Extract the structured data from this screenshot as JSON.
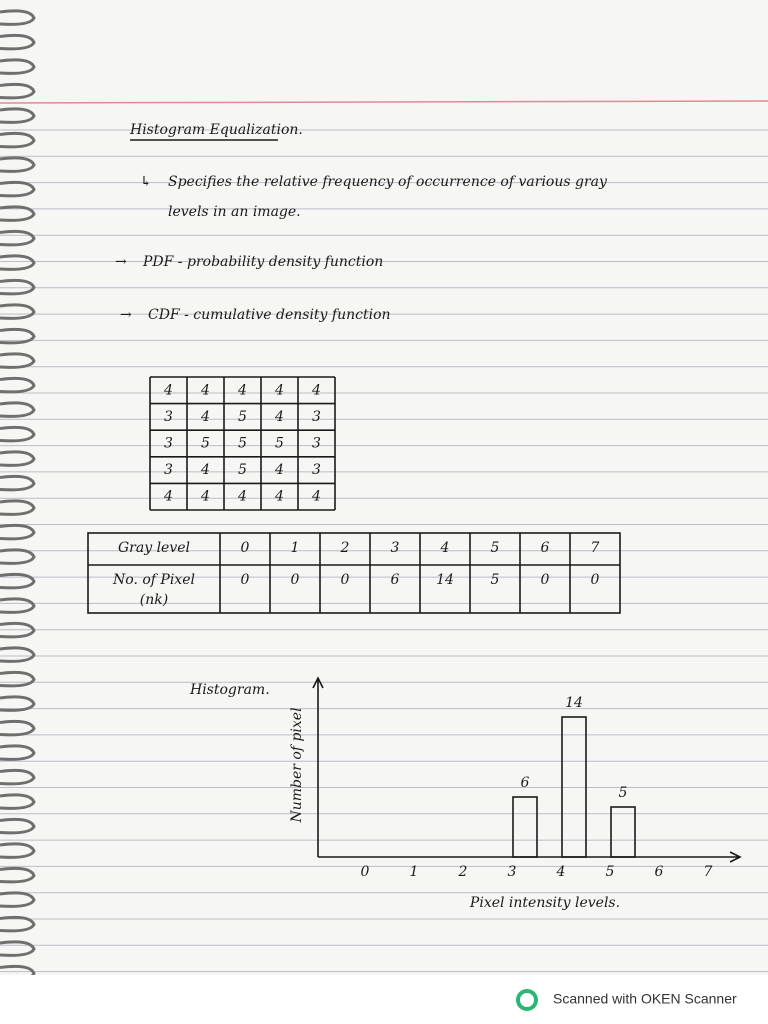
{
  "header": {
    "title": "Histogram Equalization."
  },
  "notes": [
    {
      "marker": "↳",
      "lines": [
        "Specifies the relative frequency of occurrence of various gray",
        "levels in an image."
      ]
    },
    {
      "marker": "→",
      "lines": [
        "PDF - probability density function"
      ]
    },
    {
      "marker": "→",
      "lines": [
        "CDF - cumulative density function"
      ]
    }
  ],
  "matrix": {
    "rows": [
      [
        4,
        4,
        4,
        4,
        4
      ],
      [
        3,
        4,
        5,
        4,
        3
      ],
      [
        3,
        5,
        5,
        5,
        3
      ],
      [
        3,
        4,
        5,
        4,
        3
      ],
      [
        4,
        4,
        4,
        4,
        4
      ]
    ]
  },
  "table": {
    "rows": [
      {
        "label": [
          "Gray level"
        ],
        "cells": [
          0,
          1,
          2,
          3,
          4,
          5,
          6,
          7
        ]
      },
      {
        "label": [
          "No. of Pixel",
          "(nk)"
        ],
        "cells": [
          0,
          0,
          0,
          6,
          14,
          5,
          0,
          0
        ]
      }
    ]
  },
  "histogram": {
    "title": "Histogram.",
    "y_label": "Number of pixel",
    "x_label": "Pixel intensity levels.",
    "categories": [
      0,
      1,
      2,
      3,
      4,
      5,
      6,
      7
    ],
    "values": [
      0,
      0,
      0,
      6,
      14,
      5,
      0,
      0
    ]
  },
  "footer": {
    "text": "Scanned with OKEN Scanner"
  }
}
